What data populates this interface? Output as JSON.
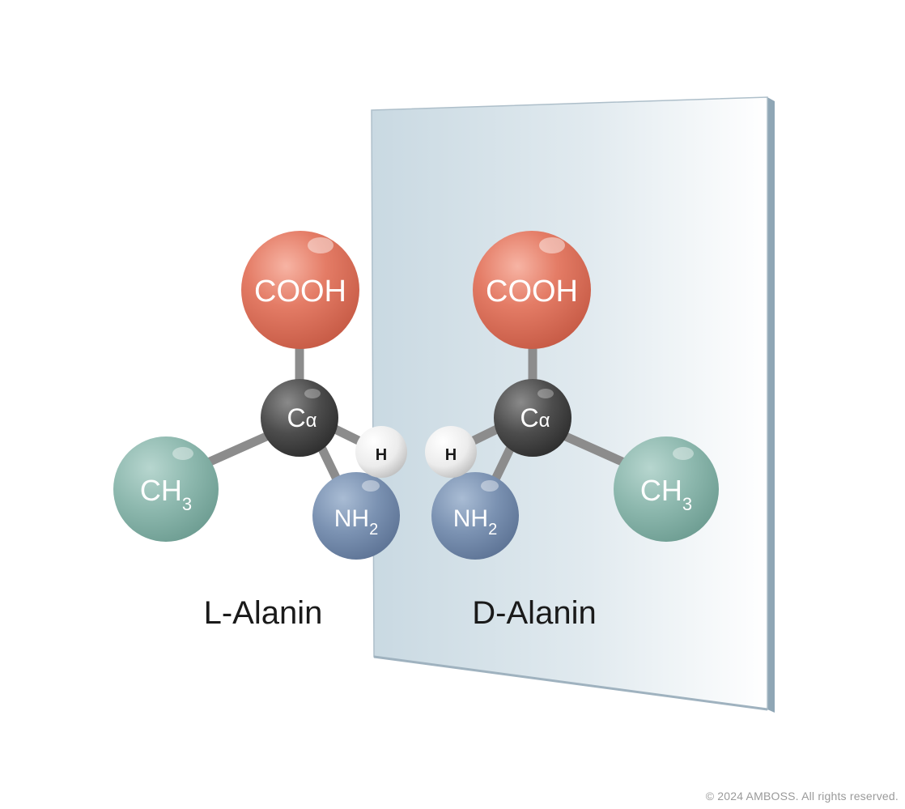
{
  "molecules": {
    "left": {
      "name": "L-Alanin",
      "atoms": {
        "carboxyl": "COOH",
        "alpha_carbon": {
          "base": "C",
          "sub": "α"
        },
        "hydrogen": "H",
        "methyl": {
          "base": "CH",
          "sub": "3"
        },
        "amino": {
          "base": "NH",
          "sub": "2"
        }
      }
    },
    "right": {
      "name": "D-Alanin",
      "atoms": {
        "carboxyl": "COOH",
        "alpha_carbon": {
          "base": "C",
          "sub": "α"
        },
        "hydrogen": "H",
        "methyl": {
          "base": "CH",
          "sub": "3"
        },
        "amino": {
          "base": "NH",
          "sub": "2"
        }
      }
    }
  },
  "colors": {
    "carboxyl": "#e07a65",
    "alpha_carbon": "#4a4a4a",
    "hydrogen": "#f2f2f2",
    "methyl": "#8db8ae",
    "amino": "#7b92b2",
    "mirror": "#cfdde5",
    "bond": "#8a8a8a"
  },
  "footer": {
    "copyright": "© 2024 AMBOSS. All rights reserved."
  }
}
